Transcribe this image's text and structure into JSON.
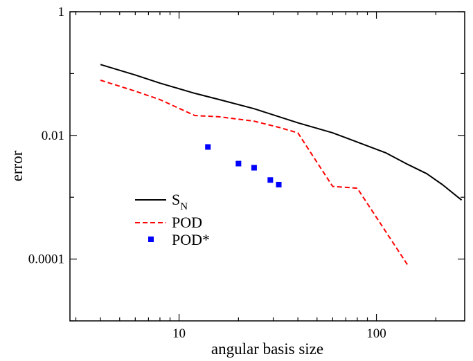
{
  "chart_data": {
    "type": "line",
    "xlabel": "angular basis size",
    "ylabel": "error",
    "xscale": "log",
    "yscale": "log",
    "xlim": [
      2.8,
      280
    ],
    "ylim": [
      1e-05,
      1
    ],
    "x_ticks": [
      {
        "value": 10,
        "label": "10"
      },
      {
        "value": 100,
        "label": "100"
      }
    ],
    "y_ticks": [
      {
        "value": 1,
        "label": "1"
      },
      {
        "value": 0.01,
        "label": "0.01"
      },
      {
        "value": 0.0001,
        "label": "0.0001"
      }
    ],
    "grid": false,
    "legend_position": "center-left",
    "series": [
      {
        "name": "S",
        "name_subscript": "N",
        "style": "solid",
        "color": "#000000",
        "x": [
          4,
          6,
          8,
          12,
          16,
          24,
          40,
          60,
          80,
          112,
          144,
          180,
          216,
          270
        ],
        "y": [
          0.14,
          0.095,
          0.07,
          0.048,
          0.038,
          0.027,
          0.016,
          0.011,
          0.0078,
          0.0052,
          0.0034,
          0.0024,
          0.0016,
          0.0009
        ]
      },
      {
        "name": "POD",
        "style": "dashed",
        "color": "#ff0000",
        "x": [
          4,
          6,
          8,
          12,
          16,
          24,
          32,
          40,
          60,
          80,
          144
        ],
        "y": [
          0.078,
          0.052,
          0.038,
          0.021,
          0.02,
          0.017,
          0.0135,
          0.011,
          0.0015,
          0.0014,
          8e-05
        ]
      },
      {
        "name": "POD*",
        "style": "markers",
        "marker": "square",
        "color": "#0000ff",
        "x": [
          14,
          20,
          24,
          29,
          32
        ],
        "y": [
          0.0065,
          0.0035,
          0.003,
          0.0019,
          0.0016
        ]
      }
    ]
  }
}
